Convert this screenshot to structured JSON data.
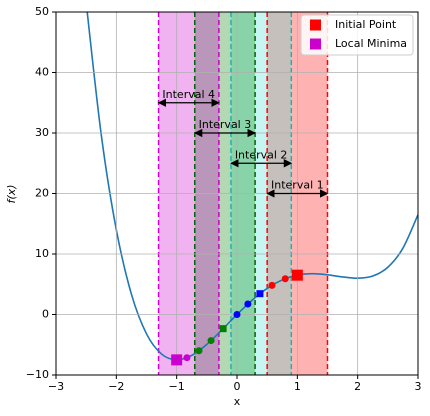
{
  "chart_data": {
    "type": "line",
    "xlabel": "x",
    "ylabel": "f(x)",
    "xlim": [
      -3,
      3
    ],
    "ylim": [
      -10,
      50
    ],
    "xticks": [
      {
        "value": -3,
        "label": "−3"
      },
      {
        "value": -2,
        "label": "−2"
      },
      {
        "value": -1,
        "label": "−1"
      },
      0,
      1,
      2,
      3
    ],
    "yticks": [
      {
        "value": -10,
        "label": "−10"
      },
      0,
      10,
      20,
      30,
      40,
      50
    ],
    "grid": true,
    "legend": "upper right",
    "curve": {
      "color": "#1f77b4",
      "x": [
        -2.5,
        -2.25,
        -2,
        -1.75,
        -1.5,
        -1.25,
        -1,
        -0.75,
        -0.5,
        -0.25,
        0,
        0.25,
        0.5,
        0.75,
        1,
        1.25,
        1.5,
        1.75,
        2,
        2.25,
        2.5,
        2.75,
        3
      ],
      "values": [
        51.56,
        29.71,
        14,
        3.36,
        -3.19,
        -6.54,
        -7.5,
        -6.76,
        -4.94,
        -2.54,
        0,
        2.36,
        4.31,
        5.71,
        6.5,
        6.74,
        6.56,
        6.21,
        6,
        6.36,
        7.81,
        10.96,
        16.5
      ]
    },
    "intervals": [
      {
        "label": "Interval 1",
        "range": [
          0.5,
          1.5
        ],
        "arrow_y": 20,
        "fill": "#ff0000",
        "line": "#ff0000"
      },
      {
        "label": "Interval 2",
        "range": [
          -0.1,
          0.9
        ],
        "arrow_y": 25,
        "fill": "#40e0d0",
        "line": "#20b2aa"
      },
      {
        "label": "Interval 3",
        "range": [
          -0.7,
          0.3
        ],
        "arrow_y": 30,
        "fill": "#008000",
        "line": "#006400"
      },
      {
        "label": "Interval 4",
        "range": [
          -1.3,
          -0.3
        ],
        "arrow_y": 35,
        "fill": "#cc00cc",
        "line": "#cc00cc"
      }
    ],
    "initial_point": {
      "name": "Initial Point",
      "x": 1,
      "y": 6.5,
      "color": "#ff0000"
    },
    "local_minimum": {
      "name": "Local Minima",
      "x": -1,
      "y": -7.5,
      "color": "#cc00cc"
    },
    "path_points": [
      {
        "x": 0.8,
        "y": 5.91,
        "color": "#ff0000",
        "marker": "circle"
      },
      {
        "x": 0.58,
        "y": 4.82,
        "color": "#ff0000",
        "marker": "circle"
      },
      {
        "x": 0.38,
        "y": 3.44,
        "color": "#0000ff",
        "marker": "square"
      },
      {
        "x": 0.18,
        "y": 1.74,
        "color": "#0000ff",
        "marker": "circle"
      },
      {
        "x": 0,
        "y": 0,
        "color": "#0000ff",
        "marker": "circle"
      },
      {
        "x": -0.23,
        "y": -2.34,
        "color": "#008000",
        "marker": "square"
      },
      {
        "x": -0.43,
        "y": -4.31,
        "color": "#008000",
        "marker": "circle"
      },
      {
        "x": -0.63,
        "y": -5.99,
        "color": "#008000",
        "marker": "circle"
      },
      {
        "x": -0.83,
        "y": -7.14,
        "color": "#cc00cc",
        "marker": "circle"
      }
    ]
  }
}
